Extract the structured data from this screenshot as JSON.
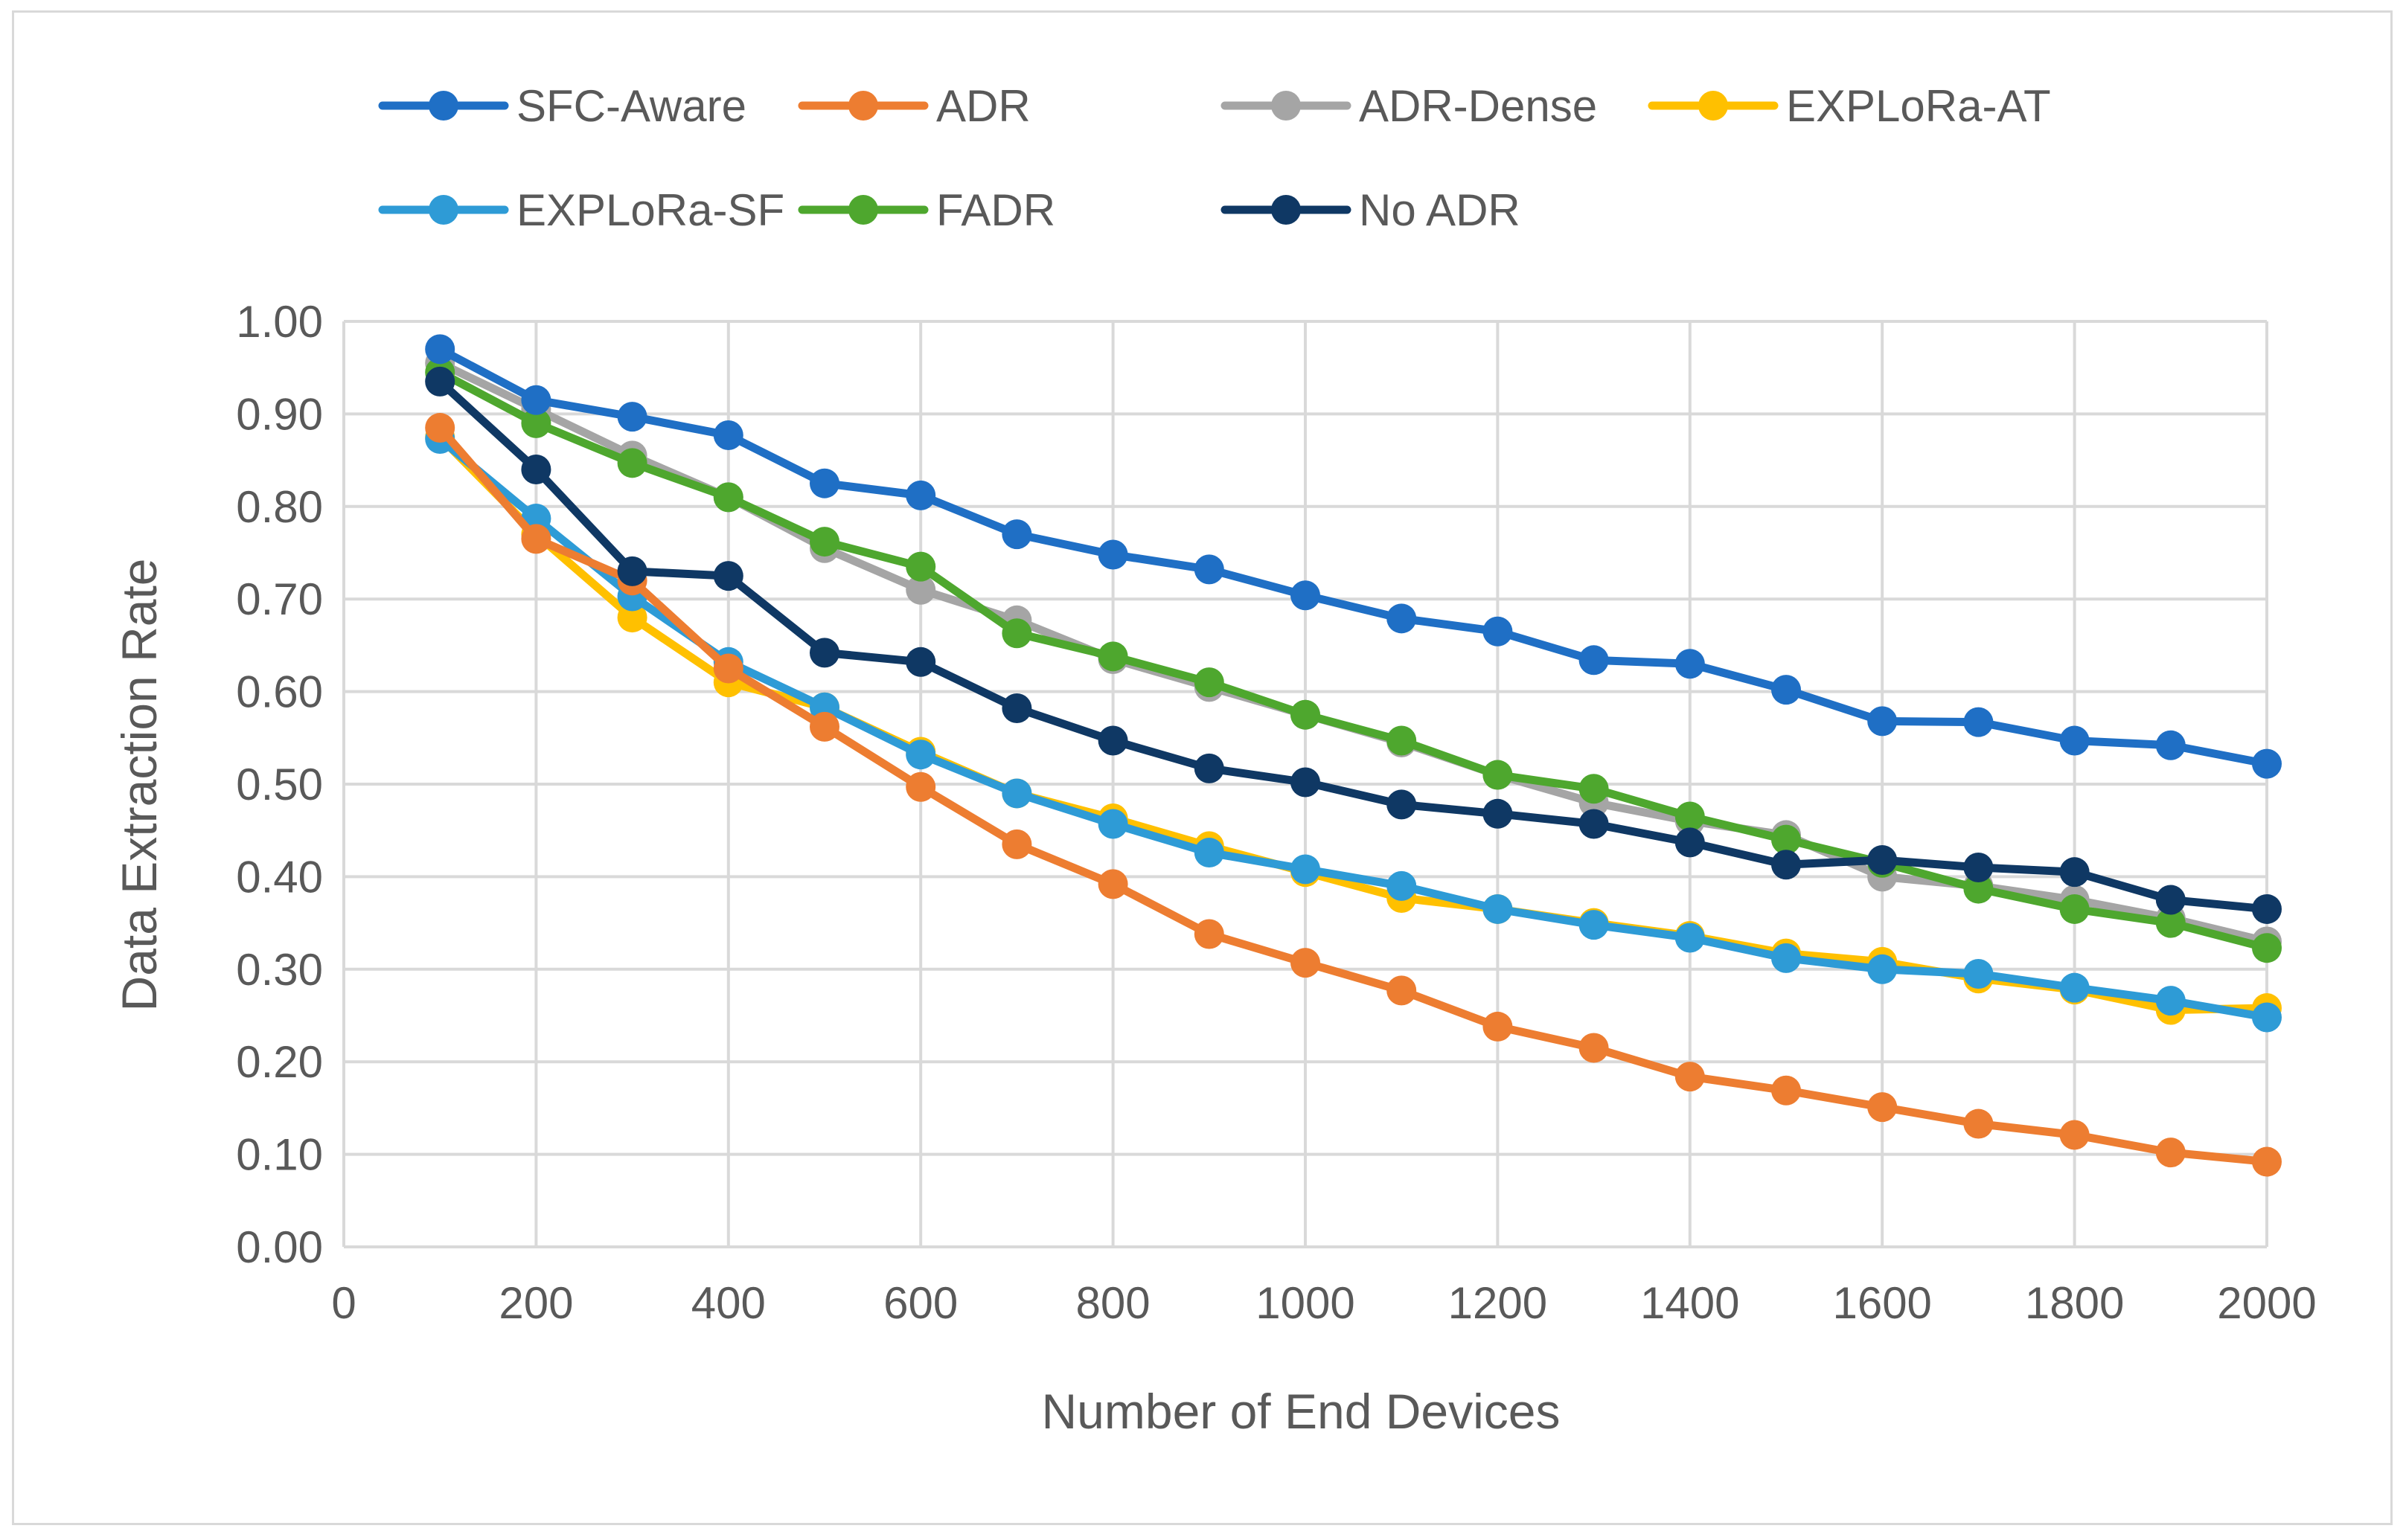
{
  "chart_data": {
    "type": "line",
    "title": "",
    "xlabel": "Number of End Devices",
    "ylabel": "Data Extraction Rate",
    "xlim": [
      0,
      2000
    ],
    "ylim": [
      0,
      1
    ],
    "xticks": [
      0,
      200,
      400,
      600,
      800,
      1000,
      1200,
      1400,
      1600,
      1800,
      2000
    ],
    "yticks": [
      0,
      0.1,
      0.2,
      0.3,
      0.4,
      0.5,
      0.6,
      0.7,
      0.8,
      0.9,
      1.0
    ],
    "ytick_labels": [
      "0.00",
      "0.10",
      "0.20",
      "0.30",
      "0.40",
      "0.50",
      "0.60",
      "0.70",
      "0.80",
      "0.90",
      "1.00"
    ],
    "grid": true,
    "legend_position": "top",
    "x": [
      100,
      200,
      300,
      400,
      500,
      600,
      700,
      800,
      900,
      1000,
      1100,
      1200,
      1300,
      1400,
      1500,
      1600,
      1700,
      1800,
      1900,
      2000
    ],
    "series": [
      {
        "name": "ADR-Dense",
        "color": "#a5a5a5",
        "values": [
          0.955,
          0.905,
          0.855,
          0.81,
          0.755,
          0.71,
          0.677,
          0.635,
          0.605,
          0.575,
          0.545,
          0.51,
          0.48,
          0.46,
          0.445,
          0.4,
          0.39,
          0.375,
          0.355,
          0.33
        ]
      },
      {
        "name": "FADR",
        "color": "#4ea72e",
        "values": [
          0.945,
          0.89,
          0.847,
          0.81,
          0.762,
          0.735,
          0.663,
          0.638,
          0.61,
          0.575,
          0.547,
          0.51,
          0.495,
          0.465,
          0.44,
          0.415,
          0.387,
          0.365,
          0.35,
          0.323
        ]
      },
      {
        "name": "EXPLoRa-AT",
        "color": "#ffc000",
        "values": [
          0.875,
          0.77,
          0.68,
          0.61,
          0.583,
          0.535,
          0.49,
          0.463,
          0.433,
          0.405,
          0.377,
          0.365,
          0.35,
          0.336,
          0.317,
          0.308,
          0.29,
          0.278,
          0.256,
          0.258
        ]
      },
      {
        "name": "EXPLoRa-SF",
        "color": "#2e9bd6",
        "values": [
          0.873,
          0.787,
          0.703,
          0.632,
          0.583,
          0.532,
          0.49,
          0.457,
          0.426,
          0.408,
          0.39,
          0.365,
          0.348,
          0.334,
          0.312,
          0.3,
          0.295,
          0.28,
          0.266,
          0.248
        ]
      },
      {
        "name": "ADR",
        "color": "#ed7d31",
        "values": [
          0.885,
          0.765,
          0.72,
          0.625,
          0.562,
          0.497,
          0.435,
          0.392,
          0.338,
          0.307,
          0.277,
          0.238,
          0.215,
          0.184,
          0.169,
          0.151,
          0.133,
          0.121,
          0.102,
          0.092
        ]
      },
      {
        "name": "No ADR",
        "color": "#0f3864",
        "values": [
          0.935,
          0.84,
          0.73,
          0.725,
          0.642,
          0.632,
          0.582,
          0.547,
          0.517,
          0.502,
          0.478,
          0.468,
          0.457,
          0.437,
          0.413,
          0.418,
          0.41,
          0.405,
          0.375,
          0.365
        ]
      },
      {
        "name": "SFC-Aware",
        "color": "#1f6fc5",
        "values": [
          0.97,
          0.915,
          0.897,
          0.877,
          0.825,
          0.812,
          0.77,
          0.748,
          0.732,
          0.704,
          0.679,
          0.665,
          0.634,
          0.63,
          0.602,
          0.568,
          0.567,
          0.547,
          0.542,
          0.522
        ]
      }
    ],
    "legend": [
      {
        "name": "SFC-Aware",
        "color": "#1f6fc5"
      },
      {
        "name": "ADR",
        "color": "#ed7d31"
      },
      {
        "name": "ADR-Dense",
        "color": "#a5a5a5"
      },
      {
        "name": "EXPLoRa-AT",
        "color": "#ffc000"
      },
      {
        "name": "EXPLoRa-SF",
        "color": "#2e9bd6"
      },
      {
        "name": "FADR",
        "color": "#4ea72e"
      },
      {
        "name": "No ADR",
        "color": "#0f3864"
      }
    ],
    "gridline_color": "#d9d9d9",
    "text_color": "#595959"
  }
}
